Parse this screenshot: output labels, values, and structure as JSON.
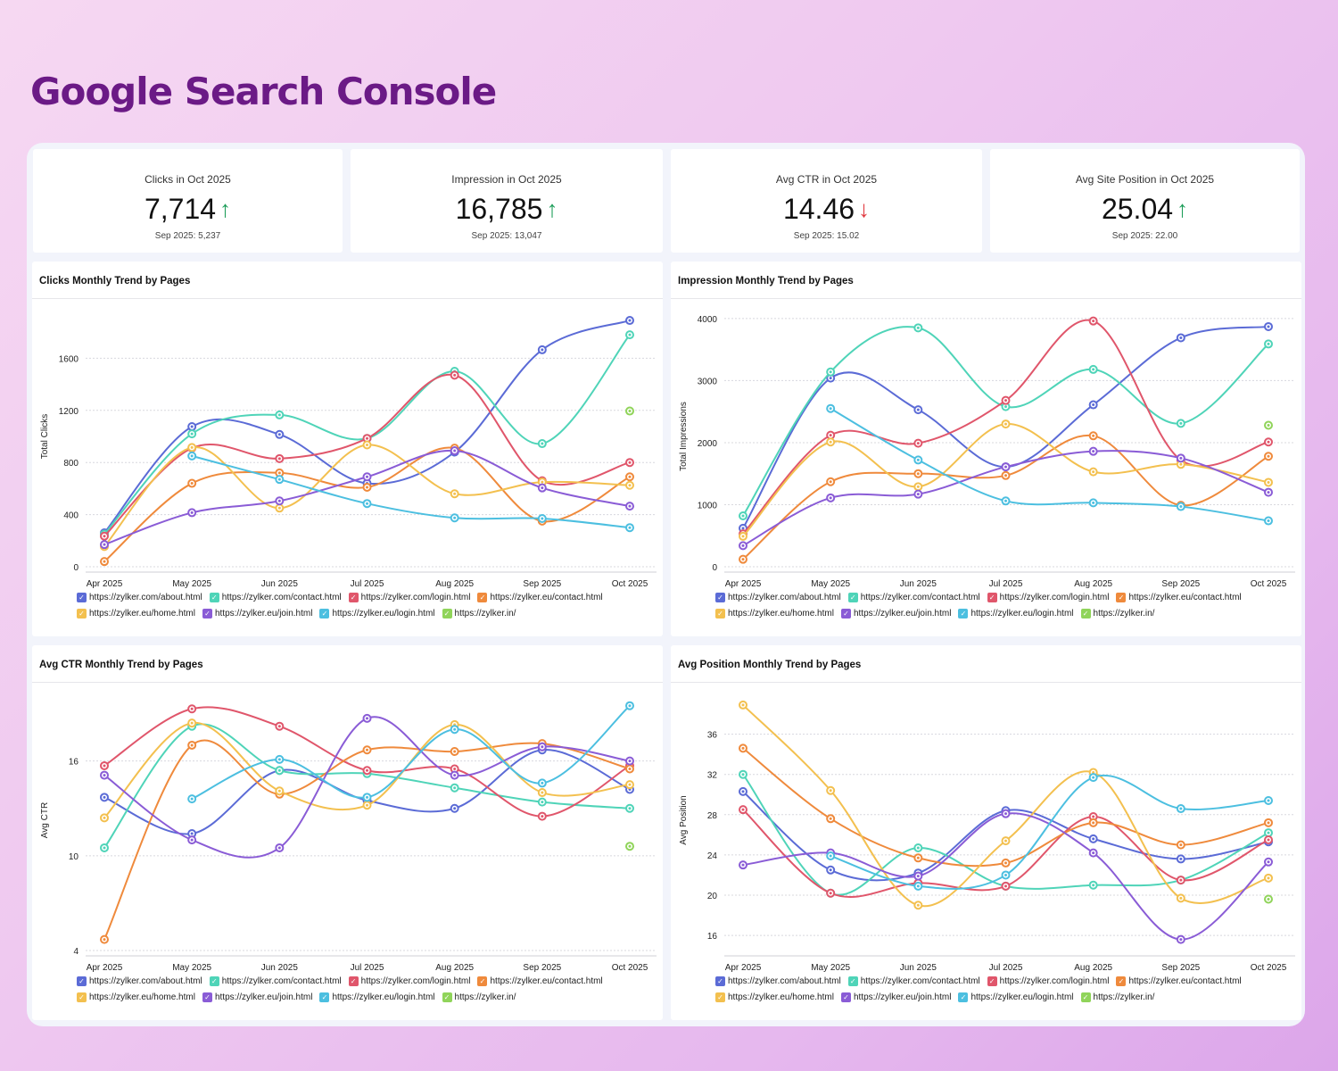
{
  "title": "Google Search Console",
  "kpis": [
    {
      "label": "Clicks in Oct 2025",
      "value": "7,714",
      "trend": "up",
      "arrow": "↑",
      "prev": "Sep 2025: 5,237"
    },
    {
      "label": "Impression in Oct 2025",
      "value": "16,785",
      "trend": "up",
      "arrow": "↑",
      "prev": "Sep 2025: 13,047"
    },
    {
      "label": "Avg CTR in Oct 2025",
      "value": "14.46",
      "trend": "down",
      "arrow": "↓",
      "prev": "Sep 2025: 15.02"
    },
    {
      "label": "Avg Site Position in Oct 2025",
      "value": "25.04",
      "trend": "up",
      "arrow": "↑",
      "prev": "Sep 2025: 22.00"
    }
  ],
  "colors": {
    "up": "#1e9e5a",
    "down": "#e0383e",
    "title": "#6b1a86"
  },
  "chart_data": [
    {
      "type": "line",
      "title": "Clicks Monthly Trend by Pages",
      "ylabel": "Total Clicks",
      "xlabel": "",
      "ylim": [
        0,
        2000
      ],
      "yticks": [
        0,
        400,
        800,
        1200,
        1600
      ],
      "grid": true,
      "legend": "bottom",
      "categories": [
        "Apr 2025",
        "May 2025",
        "Jun 2025",
        "Jul 2025",
        "Aug 2025",
        "Sep 2025",
        "Oct 2025"
      ],
      "series": [
        {
          "name": "https://zylker.com/about.html",
          "color": "#5b6bd6",
          "values": [
            260,
            1075,
            1015,
            640,
            880,
            1665,
            1890
          ]
        },
        {
          "name": "https://zylker.com/contact.html",
          "color": "#4fd4b8",
          "values": [
            250,
            1020,
            1165,
            985,
            1500,
            945,
            1780
          ]
        },
        {
          "name": "https://zylker.com/login.html",
          "color": "#e0566b",
          "values": [
            235,
            910,
            830,
            985,
            1470,
            660,
            800
          ]
        },
        {
          "name": "https://zylker.eu/contact.html",
          "color": "#ef8a3c",
          "values": [
            40,
            640,
            720,
            610,
            910,
            350,
            690
          ]
        },
        {
          "name": "https://zylker.eu/home.html",
          "color": "#f3c04f",
          "values": [
            155,
            915,
            450,
            935,
            560,
            650,
            625
          ]
        },
        {
          "name": "https://zylker.eu/join.html",
          "color": "#8a5cd6",
          "values": [
            170,
            415,
            505,
            690,
            890,
            605,
            465
          ]
        },
        {
          "name": "https://zylker.eu/login.html",
          "color": "#4cbfe0",
          "values": [
            null,
            850,
            670,
            485,
            375,
            370,
            300
          ]
        },
        {
          "name": "https://zylker.in/",
          "color": "#90d45a",
          "values": [
            null,
            null,
            null,
            null,
            null,
            null,
            1195
          ]
        }
      ]
    },
    {
      "type": "line",
      "title": "Impression Monthly Trend by Pages",
      "ylabel": "Total Impressions",
      "xlabel": "",
      "ylim": [
        0,
        4200
      ],
      "yticks": [
        0,
        1000,
        2000,
        3000,
        4000
      ],
      "grid": true,
      "legend": "bottom",
      "categories": [
        "Apr 2025",
        "May 2025",
        "Jun 2025",
        "Jul 2025",
        "Aug 2025",
        "Sep 2025",
        "Oct 2025"
      ],
      "series": [
        {
          "name": "https://zylker.com/about.html",
          "color": "#5b6bd6",
          "values": [
            620,
            3040,
            2530,
            1610,
            2610,
            3690,
            3870
          ]
        },
        {
          "name": "https://zylker.com/contact.html",
          "color": "#4fd4b8",
          "values": [
            820,
            3140,
            3850,
            2580,
            3180,
            2310,
            3590
          ]
        },
        {
          "name": "https://zylker.com/login.html",
          "color": "#e0566b",
          "values": [
            530,
            2120,
            1990,
            2680,
            3960,
            1720,
            2010
          ]
        },
        {
          "name": "https://zylker.eu/contact.html",
          "color": "#ef8a3c",
          "values": [
            120,
            1370,
            1500,
            1470,
            2110,
            990,
            1780
          ]
        },
        {
          "name": "https://zylker.eu/home.html",
          "color": "#f3c04f",
          "values": [
            490,
            2010,
            1290,
            2300,
            1530,
            1650,
            1360
          ]
        },
        {
          "name": "https://zylker.eu/join.html",
          "color": "#8a5cd6",
          "values": [
            340,
            1110,
            1170,
            1610,
            1860,
            1750,
            1200
          ]
        },
        {
          "name": "https://zylker.eu/login.html",
          "color": "#4cbfe0",
          "values": [
            null,
            2550,
            1720,
            1060,
            1030,
            970,
            740
          ]
        },
        {
          "name": "https://zylker.in/",
          "color": "#90d45a",
          "values": [
            null,
            null,
            null,
            null,
            null,
            null,
            2280
          ]
        }
      ]
    },
    {
      "type": "line",
      "title": "Avg CTR Monthly Trend by Pages",
      "ylabel": "Avg CTR",
      "xlabel": "",
      "ylim": [
        4,
        20.5
      ],
      "yticks": [
        4,
        10,
        16
      ],
      "grid": true,
      "legend": "bottom",
      "categories": [
        "Apr 2025",
        "May 2025",
        "Jun 2025",
        "Jul 2025",
        "Aug 2025",
        "Sep 2025",
        "Oct 2025"
      ],
      "series": [
        {
          "name": "https://zylker.com/about.html",
          "color": "#5b6bd6",
          "values": [
            13.7,
            11.4,
            15.4,
            13.5,
            13.0,
            16.7,
            14.2
          ]
        },
        {
          "name": "https://zylker.com/contact.html",
          "color": "#4fd4b8",
          "values": [
            10.5,
            18.2,
            15.4,
            15.2,
            14.3,
            13.4,
            13.0
          ]
        },
        {
          "name": "https://zylker.com/login.html",
          "color": "#e0566b",
          "values": [
            15.7,
            19.3,
            18.2,
            15.4,
            15.5,
            12.5,
            15.7
          ]
        },
        {
          "name": "https://zylker.eu/contact.html",
          "color": "#ef8a3c",
          "values": [
            4.7,
            17.0,
            13.9,
            16.7,
            16.6,
            17.1,
            15.5
          ]
        },
        {
          "name": "https://zylker.eu/home.html",
          "color": "#f3c04f",
          "values": [
            12.4,
            18.4,
            14.1,
            13.2,
            18.3,
            14.0,
            14.5
          ]
        },
        {
          "name": "https://zylker.eu/join.html",
          "color": "#8a5cd6",
          "values": [
            15.1,
            11.0,
            10.5,
            18.7,
            15.1,
            16.9,
            16.0
          ]
        },
        {
          "name": "https://zylker.eu/login.html",
          "color": "#4cbfe0",
          "values": [
            null,
            13.6,
            16.1,
            13.7,
            18.0,
            14.6,
            19.5
          ]
        },
        {
          "name": "https://zylker.in/",
          "color": "#90d45a",
          "values": [
            null,
            null,
            null,
            null,
            null,
            null,
            10.6
          ]
        }
      ]
    },
    {
      "type": "line",
      "title": "Avg Position Monthly Trend by Pages",
      "ylabel": "Avg Position",
      "xlabel": "",
      "ylim": [
        14.5,
        40.4
      ],
      "yticks": [
        16,
        20,
        24,
        28,
        32,
        36
      ],
      "grid": true,
      "legend": "bottom",
      "categories": [
        "Apr 2025",
        "May 2025",
        "Jun 2025",
        "Jul 2025",
        "Aug 2025",
        "Sep 2025",
        "Oct 2025"
      ],
      "series": [
        {
          "name": "https://zylker.com/about.html",
          "color": "#5b6bd6",
          "values": [
            30.3,
            22.5,
            22.2,
            28.4,
            25.6,
            23.6,
            25.3
          ]
        },
        {
          "name": "https://zylker.com/contact.html",
          "color": "#4fd4b8",
          "values": [
            32.0,
            20.2,
            24.7,
            20.9,
            21.0,
            21.5,
            26.2
          ]
        },
        {
          "name": "https://zylker.com/login.html",
          "color": "#e0566b",
          "values": [
            28.5,
            20.2,
            21.2,
            20.9,
            27.8,
            21.5,
            25.5
          ]
        },
        {
          "name": "https://zylker.eu/contact.html",
          "color": "#ef8a3c",
          "values": [
            34.6,
            27.6,
            23.7,
            23.2,
            27.2,
            25.0,
            27.2
          ]
        },
        {
          "name": "https://zylker.eu/home.html",
          "color": "#f3c04f",
          "values": [
            38.9,
            30.4,
            19.0,
            25.4,
            32.2,
            19.7,
            21.7
          ]
        },
        {
          "name": "https://zylker.eu/join.html",
          "color": "#8a5cd6",
          "values": [
            23.0,
            24.2,
            21.9,
            28.1,
            24.2,
            15.6,
            23.3
          ]
        },
        {
          "name": "https://zylker.eu/login.html",
          "color": "#4cbfe0",
          "values": [
            null,
            23.9,
            20.9,
            22.0,
            31.7,
            28.6,
            29.4
          ]
        },
        {
          "name": "https://zylker.in/",
          "color": "#90d45a",
          "values": [
            null,
            null,
            null,
            null,
            null,
            null,
            19.6
          ]
        }
      ]
    }
  ]
}
